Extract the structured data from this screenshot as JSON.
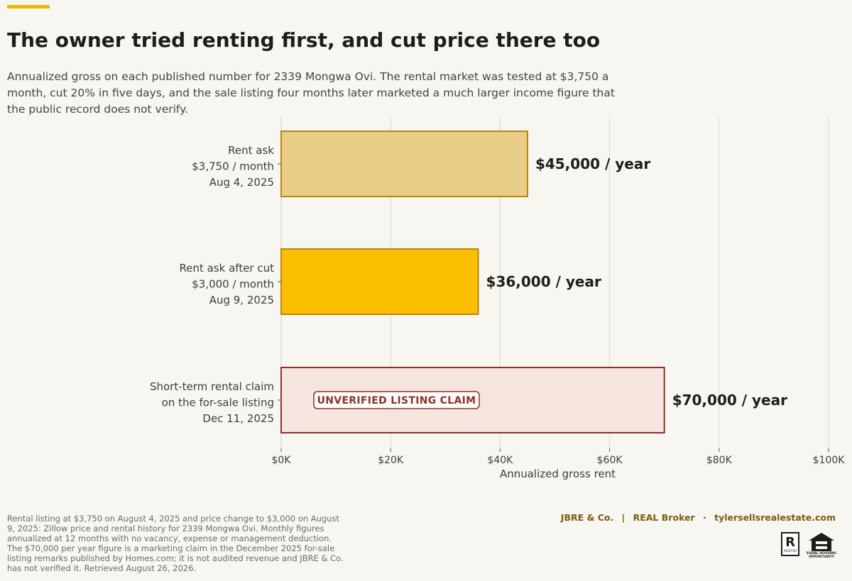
{
  "header": {
    "title": "The owner tried renting first, and cut price there too",
    "subtitle": "Annualized gross on each published number for 2339 Mongwa Ovi. The rental market was tested at $3,750 a month, cut 20% in five days, and the sale listing four months later marketed a much larger income figure that the public record does not verify."
  },
  "chart_data": {
    "type": "bar",
    "orientation": "horizontal",
    "categories": [
      [
        "Rent ask",
        "$3,750 / month",
        "Aug 4, 2025"
      ],
      [
        "Rent ask after cut",
        "$3,000 / month",
        "Aug 9, 2025"
      ],
      [
        "Short-term rental claim",
        "on the for-sale listing",
        "Dec 11, 2025"
      ]
    ],
    "values": [
      45000,
      36000,
      70000
    ],
    "value_labels": [
      "$45,000 / year",
      "$36,000 / year",
      "$70,000 / year"
    ],
    "bar_fill_colors": [
      "#e8cd87",
      "#fbbf00",
      "#f6e5df"
    ],
    "bar_edge_colors": [
      "#b8860b",
      "#b8860b",
      "#8a3325"
    ],
    "annotation": "UNVERIFIED LISTING CLAIM",
    "xlabel": "Annualized gross rent",
    "xlim": [
      0,
      100000
    ],
    "x_ticks": [
      0,
      20000,
      40000,
      60000,
      80000,
      100000
    ],
    "x_tick_labels": [
      "$0K",
      "$20K",
      "$40K",
      "$60K",
      "$80K",
      "$100K"
    ],
    "grid": "vertical",
    "legend": "none"
  },
  "footer": {
    "source": "Rental listing at $3,750 on August 4, 2025 and price change to $3,000 on August 9, 2025: Zillow price and rental history for 2339 Mongwa Ovi. Monthly figures annualized at 12 months with no vacancy, expense or management deduction. The $70,000 per year figure is a marketing claim in the December 2025 for-sale listing remarks published by Homes.com; it is not audited revenue and JBRE & Co. has not verified it. Retrieved August 26, 2026.",
    "brand": "JBRE & Co.",
    "brokerage": "REAL Broker",
    "website": "tylersellsrealestate.com",
    "sep1": "|",
    "sep2": "·",
    "realtor_logo_text": "REALTOR",
    "eho_logo_text": "EQUAL HOUSING OPPORTUNITY"
  },
  "colors": {
    "accent": "#f2b705",
    "background": "#f8f6f0",
    "claim": "#8a3325"
  }
}
